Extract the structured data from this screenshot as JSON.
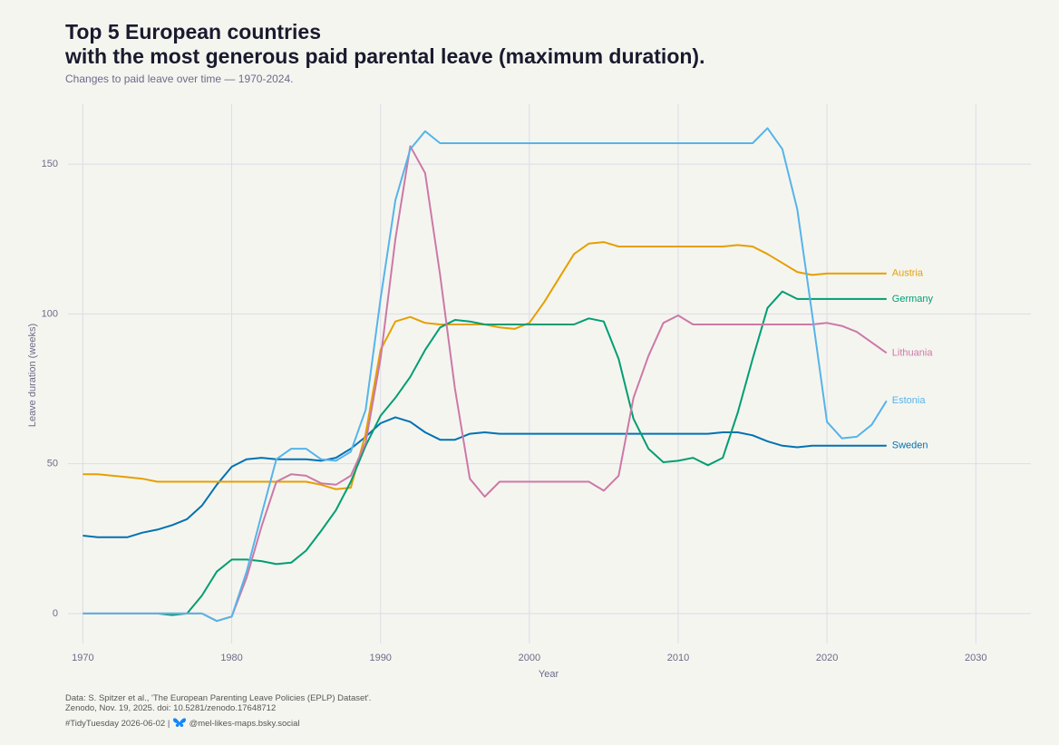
{
  "chart_data": {
    "type": "line",
    "title": "Top 5 European countries\nwith the most generous paid parental leave (maximum duration).",
    "subtitle": "Changes to paid leave over time — 1970-2024.",
    "x_label": "Year",
    "y_label": "Leave duration (weeks)",
    "caption": [
      "Data: S. Spitzer et al., 'The European Parenting Leave Policies (EPLP) Dataset'.",
      "Zenodo, Nov. 19, 2025. doi: 10.5281/zenodo.17648712",
      "#TidyTuesday 2026-06-02 |",
      "@mel-likes-maps.bsky.social"
    ],
    "x": [
      1970,
      1971,
      1972,
      1973,
      1974,
      1975,
      1976,
      1977,
      1978,
      1979,
      1980,
      1981,
      1982,
      1983,
      1984,
      1985,
      1986,
      1987,
      1988,
      1989,
      1990,
      1991,
      1992,
      1993,
      1994,
      1995,
      1996,
      1997,
      1998,
      1999,
      2000,
      2001,
      2002,
      2003,
      2004,
      2005,
      2006,
      2007,
      2008,
      2009,
      2010,
      2011,
      2012,
      2013,
      2014,
      2015,
      2016,
      2017,
      2018,
      2019,
      2020,
      2021,
      2022,
      2023,
      2024
    ],
    "xlim": [
      1969,
      2033.7
    ],
    "xticks": [
      1970,
      1980,
      1990,
      2000,
      2010,
      2020,
      2030
    ],
    "ylim": [
      -10,
      170
    ],
    "yticks": [
      0,
      50,
      100,
      150
    ],
    "grid": true,
    "series": [
      {
        "name": "Sweden",
        "color": "#0072B2",
        "values": [
          26,
          25.5,
          25.5,
          25.5,
          27,
          28,
          29.5,
          31.5,
          36,
          43,
          49,
          51.5,
          52,
          51.5,
          51.5,
          51.5,
          51,
          52,
          55,
          59,
          63.5,
          65.5,
          64,
          60.5,
          58,
          58,
          60,
          60.5,
          60,
          60,
          60,
          60,
          60,
          60,
          60,
          60,
          60,
          60,
          60,
          60,
          60,
          60,
          60,
          60.5,
          60.5,
          59.5,
          57.5,
          56,
          55.5,
          56,
          56,
          56,
          56,
          56,
          56
        ]
      },
      {
        "name": "Austria",
        "color": "#E69F00",
        "values": [
          46.5,
          46.5,
          46,
          45.5,
          45,
          44,
          44,
          44,
          44,
          44,
          44,
          44,
          44,
          44,
          44,
          44,
          43,
          41.5,
          42,
          60,
          88,
          97.5,
          99,
          97,
          96.5,
          96.5,
          96.5,
          96.5,
          95.5,
          95,
          97,
          104,
          112,
          120,
          123.5,
          124,
          122.5,
          122.5,
          122.5,
          122.5,
          122.5,
          122.5,
          122.5,
          122.5,
          123,
          122.5,
          120,
          117,
          114,
          113,
          113.5,
          113.5,
          113.5,
          113.5,
          113.5
        ]
      },
      {
        "name": "Germany",
        "color": "#009E73",
        "values": [
          null,
          null,
          null,
          null,
          null,
          0,
          -0.5,
          0,
          6,
          14,
          18,
          18,
          17.5,
          16.5,
          17,
          21,
          27.5,
          34.5,
          44,
          56,
          66,
          72,
          79,
          88,
          95.5,
          98,
          97.5,
          96.5,
          96.5,
          96.5,
          96.5,
          96.5,
          96.5,
          96.5,
          98.5,
          97.5,
          85,
          65,
          55,
          50.5,
          51,
          52,
          49.5,
          52,
          67,
          85,
          102,
          107.5,
          105,
          105,
          105,
          105,
          105,
          105,
          105
        ]
      },
      {
        "name": "Lithuania",
        "color": "#CC79A7",
        "values": [
          0,
          0,
          0,
          0,
          0,
          0,
          0,
          0,
          0,
          -2.5,
          -1,
          12,
          29,
          44,
          46.5,
          46,
          43.5,
          43,
          46,
          57,
          85,
          125,
          156,
          147,
          113,
          75,
          45,
          39,
          44,
          44,
          44,
          44,
          44,
          44,
          44,
          41,
          46,
          72,
          86,
          97,
          99.5,
          96.5,
          96.5,
          96.5,
          96.5,
          96.5,
          96.5,
          96.5,
          96.5,
          96.5,
          97,
          96,
          94,
          90.5,
          87
        ]
      },
      {
        "name": "Estonia",
        "color": "#56B4E9",
        "values": [
          0,
          0,
          0,
          0,
          0,
          0,
          0,
          0,
          0,
          -2.5,
          -1,
          14,
          33,
          51.5,
          55,
          55,
          51.5,
          51,
          54,
          68,
          105,
          138,
          155,
          161,
          157,
          157,
          157,
          157,
          157,
          157,
          157,
          157,
          157,
          157,
          157,
          157,
          157,
          157,
          157,
          157,
          157,
          157,
          157,
          157,
          157,
          157,
          162,
          155,
          135,
          100,
          64,
          58.5,
          59,
          63,
          71
        ]
      }
    ]
  }
}
